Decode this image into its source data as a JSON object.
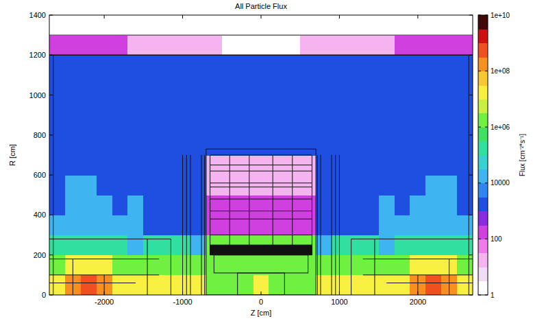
{
  "chart_data": {
    "type": "heatmap",
    "title": "All Particle Flux",
    "x_label": "Z [cm]",
    "y_label": "R [cm]",
    "xlim": [
      -2700,
      2700
    ],
    "ylim": [
      0,
      1400
    ],
    "xticks": [
      -2000,
      -1000,
      0,
      1000,
      2000
    ],
    "yticks": [
      0,
      200,
      400,
      600,
      800,
      1000,
      1200,
      1400
    ],
    "x_bins": [
      -2700,
      -2500,
      -2300,
      -2100,
      -1900,
      -1700,
      -1500,
      -1300,
      -1100,
      -900,
      -700,
      -500,
      -300,
      -100,
      100,
      300,
      500,
      700,
      900,
      1100,
      1300,
      1500,
      1700,
      1900,
      2100,
      2300,
      2500,
      2700
    ],
    "y_bins": [
      0,
      100,
      200,
      300,
      400,
      500,
      600,
      700,
      800,
      900,
      1000,
      1100,
      1200,
      1300,
      1400
    ],
    "cells": [
      [
        30000000.0,
        100000000.0,
        500000000.0,
        300000000.0,
        30000000.0,
        10000000.0,
        10000000.0,
        30000000.0,
        10000000.0,
        10000000.0,
        3000000.0,
        3000000.0,
        3000000.0,
        10000000.0,
        3000000.0,
        3000000.0,
        3000000.0,
        10000000.0,
        10000000.0,
        30000000.0,
        10000000.0,
        10000000.0,
        30000000.0,
        300000000.0,
        500000000.0,
        100000000.0,
        30000000.0
      ],
      [
        3000000.0,
        10000000.0,
        10000000.0,
        10000000.0,
        3000000.0,
        1000000.0,
        1000000.0,
        3000000.0,
        3000000.0,
        1000000.0,
        3000000.0,
        3000000.0,
        3000000.0,
        3000000.0,
        3000000.0,
        3000000.0,
        3000000.0,
        1000000.0,
        3000000.0,
        3000000.0,
        1000000.0,
        1000000.0,
        3000000.0,
        10000000.0,
        10000000.0,
        10000000.0,
        3000000.0
      ],
      [
        100000.0,
        300000.0,
        300000.0,
        300000.0,
        100000.0,
        30000.0,
        300000.0,
        300000.0,
        100000.0,
        30000.0,
        1000000.0,
        1000000.0,
        1000000.0,
        1000000.0,
        1000000.0,
        1000000.0,
        1000000.0,
        30000.0,
        100000.0,
        300000.0,
        300000.0,
        30000.0,
        100000.0,
        300000.0,
        300000.0,
        300000.0,
        100000.0
      ],
      [
        10000,
        10000,
        10000,
        10000,
        10000,
        10000,
        3000,
        3000,
        3000,
        3000,
        300,
        300,
        300,
        300,
        300,
        300,
        300,
        3000,
        3000,
        3000,
        3000,
        10000,
        10000,
        10000,
        10000,
        10000,
        10000
      ],
      [
        3000,
        10000,
        30000,
        10000,
        3000,
        10000,
        3000,
        2000,
        2000,
        2000,
        100,
        100,
        100,
        100,
        100,
        100,
        100,
        2000,
        2000,
        2000,
        3000,
        10000,
        3000,
        10000,
        30000,
        10000,
        3000
      ],
      [
        2000,
        10000,
        10000,
        3000,
        2000,
        3000,
        2000,
        2000,
        2000,
        2000,
        30,
        30,
        10,
        30,
        10,
        30,
        30,
        2000,
        2000,
        2000,
        2000,
        3000,
        2000,
        3000,
        10000,
        10000,
        2000
      ],
      [
        2000,
        3000,
        3000,
        2000,
        2000,
        2000,
        2000,
        2000,
        2000,
        2000,
        30,
        30,
        30,
        30,
        30,
        30,
        30,
        2000,
        2000,
        2000,
        2000,
        2000,
        2000,
        2000,
        3000,
        3000,
        2000
      ],
      [
        2000,
        3000,
        2000,
        2000,
        2000,
        2000,
        2000,
        2000,
        2000,
        2000,
        2000,
        2000,
        2000,
        2000,
        2000,
        2000,
        2000,
        2000,
        2000,
        2000,
        2000,
        2000,
        2000,
        2000,
        2000,
        3000,
        2000
      ],
      [
        2000,
        2000,
        2000,
        2000,
        2000,
        2000,
        2000,
        2000,
        2000,
        2000,
        2000,
        2000,
        2000,
        2000,
        2000,
        2000,
        2000,
        2000,
        2000,
        2000,
        2000,
        2000,
        2000,
        2000,
        2000,
        2000,
        2000
      ],
      [
        2000,
        2000,
        2000,
        2000,
        2000,
        2000,
        2000,
        2000,
        2000,
        2000,
        2000,
        2000,
        2000,
        2000,
        2000,
        2000,
        2000,
        2000,
        2000,
        2000,
        2000,
        2000,
        2000,
        2000,
        2000,
        2000,
        2000
      ],
      [
        2000,
        2000,
        2000,
        2000,
        2000,
        2000,
        2000,
        2000,
        2000,
        2000,
        2000,
        2000,
        2000,
        2000,
        2000,
        2000,
        2000,
        2000,
        2000,
        2000,
        2000,
        2000,
        2000,
        2000,
        2000,
        2000,
        2000
      ],
      [
        1000,
        1000,
        1000,
        1000,
        1000,
        1000,
        1000,
        1000,
        1000,
        1000,
        1000,
        1000,
        1000,
        1000,
        1000,
        1000,
        1000,
        1000,
        1000,
        1000,
        1000,
        1000,
        1000,
        1000,
        1000,
        1000,
        1000
      ],
      [
        300,
        300,
        100,
        100,
        100,
        30,
        30,
        30,
        10,
        10,
        10,
        3,
        3,
        3,
        3,
        3,
        10,
        10,
        10,
        30,
        30,
        30,
        100,
        100,
        100,
        300,
        300
      ],
      [
        1,
        1,
        1,
        1,
        1,
        1,
        1,
        1,
        1,
        1,
        1,
        1,
        1,
        1,
        1,
        1,
        1,
        1,
        1,
        1,
        1,
        1,
        1,
        1,
        1,
        1,
        1
      ]
    ],
    "color_range": [
      1,
      10000000000.0
    ],
    "color_ticks": [
      1,
      100,
      10000,
      {
        "value": 1000000,
        "label": "1e+06"
      },
      {
        "value": 100000000,
        "label": "1e+08"
      },
      {
        "value": 10000000000,
        "label": "1e+10"
      }
    ],
    "color_label": "Flux [cm⁻²*s⁻¹]"
  }
}
